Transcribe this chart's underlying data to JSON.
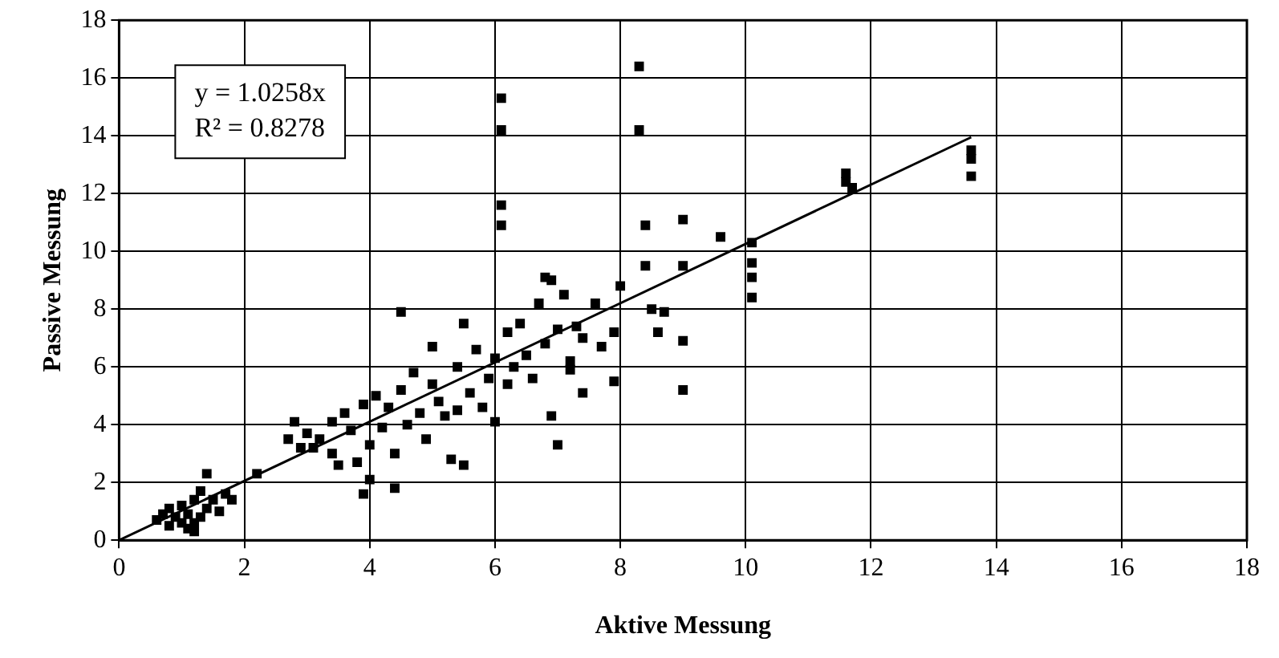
{
  "chart_data": {
    "type": "scatter",
    "xlabel": "Aktive Messung",
    "ylabel": "Passive Messung",
    "xlim": [
      0,
      18
    ],
    "ylim": [
      0,
      18
    ],
    "xticks": [
      0,
      2,
      4,
      6,
      8,
      10,
      12,
      14,
      16,
      18
    ],
    "yticks": [
      0,
      2,
      4,
      6,
      8,
      10,
      12,
      14,
      16,
      18
    ],
    "grid": true,
    "legend": false,
    "marker": "square",
    "annotations": [
      "y = 1.0258x",
      "R² = 0.8278"
    ],
    "series": [
      {
        "color": "#000000",
        "x": [
          0.6,
          0.7,
          0.8,
          0.8,
          0.9,
          1.0,
          1.0,
          1.1,
          1.1,
          1.2,
          1.2,
          1.3,
          1.3,
          1.4,
          1.4,
          1.5,
          1.6,
          1.7,
          1.8,
          1.2,
          2.2,
          2.7,
          2.8,
          2.9,
          3.0,
          3.1,
          3.2,
          3.4,
          3.4,
          3.5,
          3.6,
          3.7,
          3.8,
          3.9,
          3.9,
          4.0,
          4.0,
          4.1,
          4.2,
          4.3,
          4.4,
          4.4,
          4.5,
          4.5,
          4.6,
          4.7,
          4.8,
          4.9,
          5.0,
          5.0,
          5.1,
          5.2,
          5.3,
          5.4,
          5.4,
          5.5,
          5.5,
          5.6,
          5.7,
          5.8,
          5.9,
          6.0,
          6.0,
          6.1,
          6.1,
          6.1,
          6.1,
          6.2,
          6.2,
          6.3,
          6.4,
          6.5,
          6.6,
          6.7,
          6.8,
          6.8,
          6.9,
          6.9,
          7.0,
          7.0,
          7.1,
          7.2,
          7.2,
          7.3,
          7.4,
          7.4,
          7.6,
          7.7,
          7.9,
          7.9,
          8.0,
          8.3,
          8.3,
          8.4,
          8.4,
          8.5,
          8.6,
          8.7,
          9.0,
          9.0,
          9.0,
          9.0,
          9.6,
          10.1,
          10.1,
          10.1,
          10.1,
          11.6,
          11.6,
          11.7,
          13.6,
          13.6,
          13.6
        ],
        "values": [
          0.7,
          0.9,
          0.5,
          1.1,
          0.8,
          0.6,
          1.2,
          0.4,
          0.9,
          0.3,
          1.4,
          0.8,
          1.7,
          2.3,
          1.1,
          1.4,
          1.0,
          1.6,
          1.4,
          0.6,
          2.3,
          3.5,
          4.1,
          3.2,
          3.7,
          3.2,
          3.5,
          3.0,
          4.1,
          2.6,
          4.4,
          3.8,
          2.7,
          1.6,
          4.7,
          2.1,
          3.3,
          5.0,
          3.9,
          4.6,
          1.8,
          3.0,
          5.2,
          7.9,
          4.0,
          5.8,
          4.4,
          3.5,
          5.4,
          6.7,
          4.8,
          4.3,
          2.8,
          6.0,
          4.5,
          7.5,
          2.6,
          5.1,
          6.6,
          4.6,
          5.6,
          4.1,
          6.3,
          15.3,
          14.2,
          11.6,
          10.9,
          7.2,
          5.4,
          6.0,
          7.5,
          6.4,
          5.6,
          8.2,
          9.1,
          6.8,
          4.3,
          9.0,
          3.3,
          7.3,
          8.5,
          6.2,
          5.9,
          7.4,
          5.1,
          7.0,
          8.2,
          6.7,
          5.5,
          7.2,
          8.8,
          16.4,
          14.2,
          10.9,
          9.5,
          8.0,
          7.2,
          7.9,
          9.5,
          11.1,
          6.9,
          5.2,
          10.5,
          10.3,
          9.6,
          9.1,
          8.4,
          12.7,
          12.4,
          12.2,
          13.5,
          13.2,
          12.6
        ]
      },
      {
        "type": "line",
        "color": "#000000",
        "marker": "none",
        "x": [
          0,
          13.6
        ],
        "values": [
          0,
          13.95
        ]
      }
    ]
  }
}
